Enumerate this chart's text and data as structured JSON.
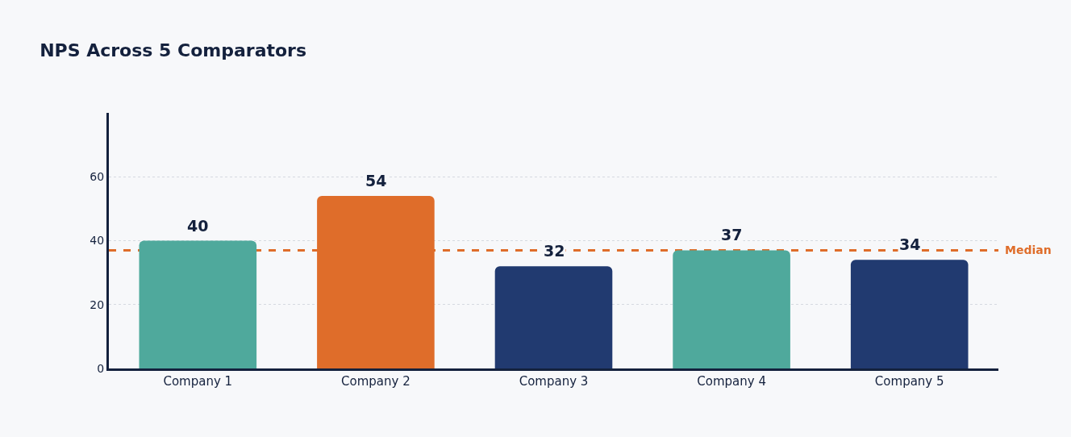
{
  "chart_data": {
    "type": "bar",
    "title": "NPS Across 5 Comparators",
    "categories": [
      "Company 1",
      "Company 2",
      "Company 3",
      "Company 4",
      "Company 5"
    ],
    "values": [
      40,
      54,
      32,
      37,
      34
    ],
    "colors": [
      "#4fa99c",
      "#df6d2a",
      "#213a70",
      "#4fa99c",
      "#213a70"
    ],
    "data_labels": true,
    "ylim": [
      0,
      80
    ],
    "yticks": [
      0,
      20,
      40,
      60
    ],
    "grid": "y",
    "ref_lines": [
      {
        "axis": "y",
        "value": 37,
        "label": "Median",
        "color": "#df6d2a",
        "line_style": "dashed"
      }
    ]
  }
}
